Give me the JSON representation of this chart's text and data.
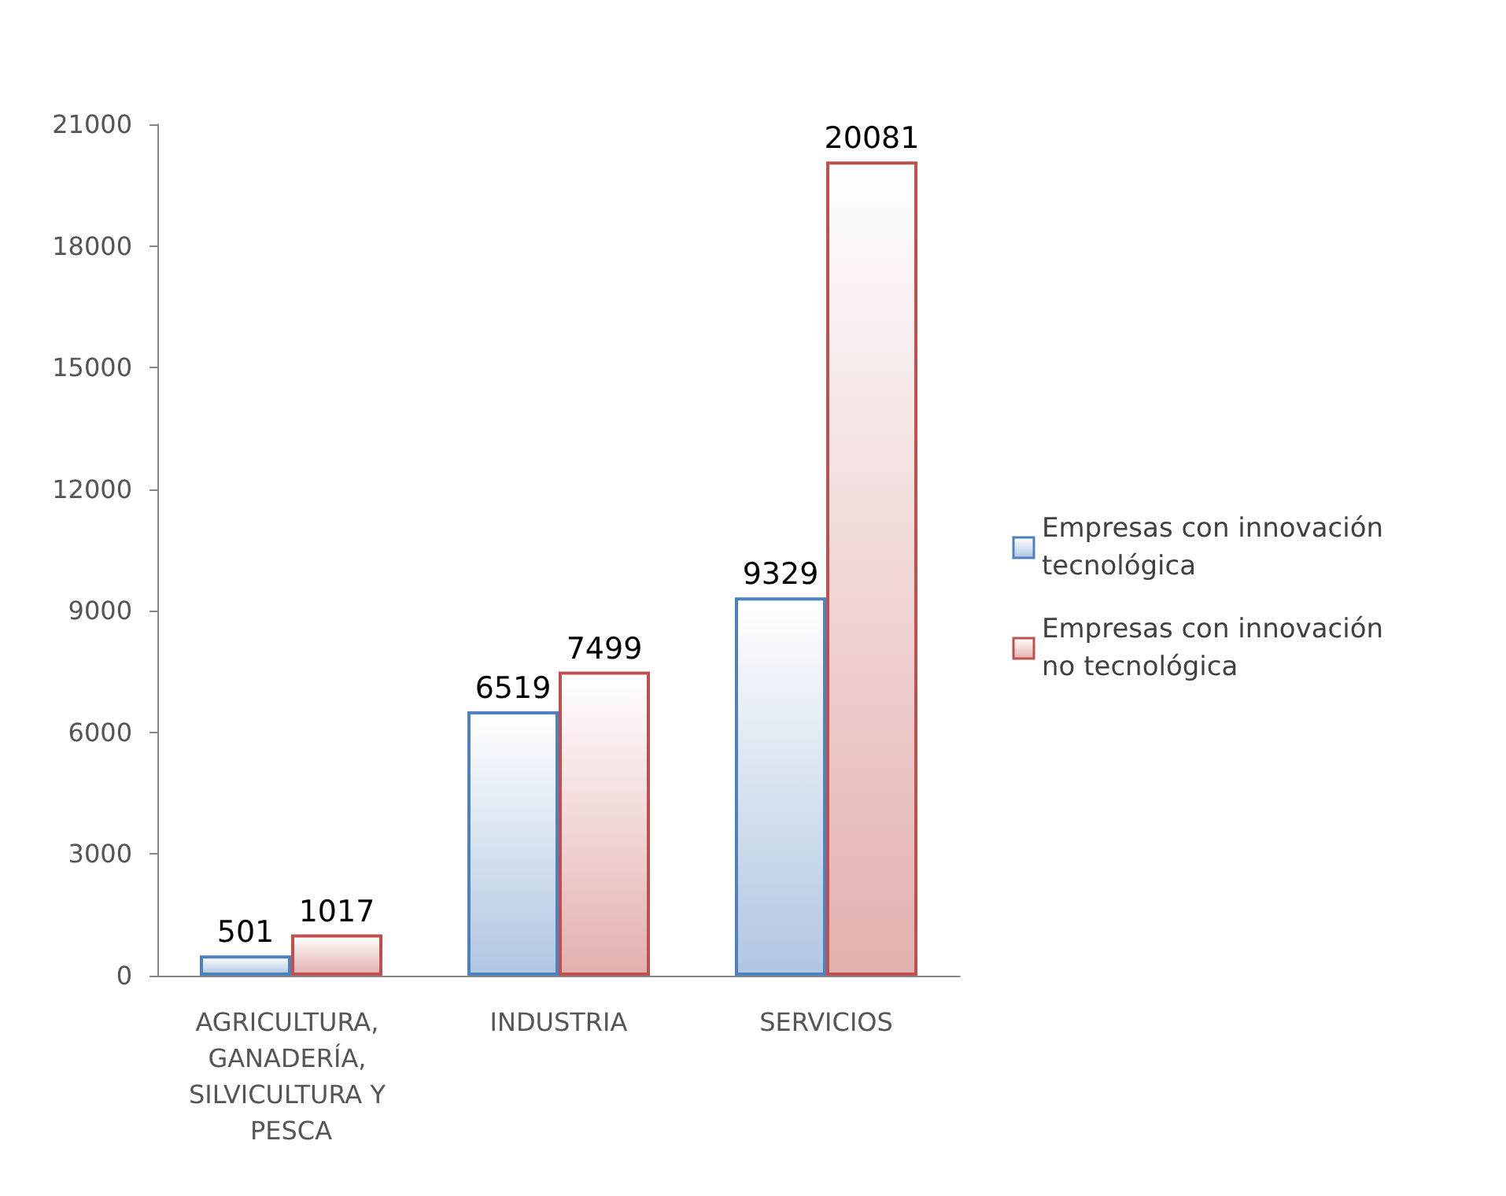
{
  "chart_data": {
    "type": "bar",
    "categories": [
      "AGRICULTURA, GANADERÍA, SILVICULTURA Y PESCA",
      "INDUSTRIA",
      "SERVICIOS"
    ],
    "series": [
      {
        "name": "Empresas con innovación tecnológica",
        "color": "#4f81bd",
        "values": [
          501,
          6519,
          9329
        ]
      },
      {
        "name": "Empresas con innovación no tecnológica",
        "color": "#c0504d",
        "values": [
          1017,
          7499,
          20081
        ]
      }
    ],
    "ylim": [
      0,
      21000
    ],
    "yticks": [
      0,
      3000,
      6000,
      9000,
      12000,
      15000,
      18000,
      21000
    ],
    "grid": false,
    "legend": "right",
    "data_labels": true
  }
}
